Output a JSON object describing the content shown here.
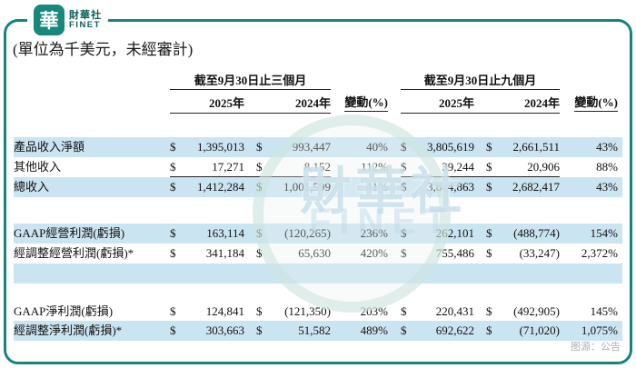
{
  "brand": {
    "logo_char": "華",
    "name_cn": "財華社",
    "name_en": "FINET"
  },
  "note_unit": "(單位為千美元，未經審計)",
  "source_note": "图源：公告",
  "watermark": {
    "cn": "財華社",
    "en": "FINET"
  },
  "colors": {
    "accent_teal": "#168579",
    "row_blue": "#cbe4f2",
    "logo_text": "#0d6058",
    "source_gray": "#aeaeae"
  },
  "table": {
    "currency_symbol": "$",
    "groups": [
      {
        "title": "截至9月30日止三個月",
        "col_2025": "2025年",
        "col_2024": "2024年",
        "col_chg": "變動(%)"
      },
      {
        "title": "截至9月30日止九個月",
        "col_2025": "2025年",
        "col_2024": "2024年",
        "col_chg": "變動(%)"
      }
    ],
    "rows": [
      {
        "label": "產品收入淨額",
        "values": [
          "1,395,013",
          "993,447",
          "40%",
          "3,805,619",
          "2,661,511",
          "43%"
        ]
      },
      {
        "label": "其他收入",
        "values": [
          "17,271",
          "8,152",
          "112%",
          "39,244",
          "20,906",
          "88%"
        ]
      },
      {
        "label": "總收入",
        "values": [
          "1,412,284",
          "1,001,599",
          "41%",
          "3,844,863",
          "2,682,417",
          "43%"
        ]
      },
      {
        "label": "GAAP經營利潤(虧損)",
        "values": [
          "163,114",
          "(120,265)",
          "236%",
          "262,101",
          "(488,774)",
          "154%"
        ]
      },
      {
        "label": "經調整經營利潤(虧損)*",
        "values": [
          "341,184",
          "65,630",
          "420%",
          "755,486",
          "(33,247)",
          "2,372%"
        ]
      },
      {
        "label": "GAAP淨利潤(虧損)",
        "values": [
          "124,841",
          "(121,350)",
          "203%",
          "220,431",
          "(492,905)",
          "145%"
        ]
      },
      {
        "label": "經調整淨利潤(虧損)*",
        "values": [
          "303,663",
          "51,582",
          "489%",
          "692,622",
          "(71,020)",
          "1,075%"
        ]
      }
    ]
  }
}
